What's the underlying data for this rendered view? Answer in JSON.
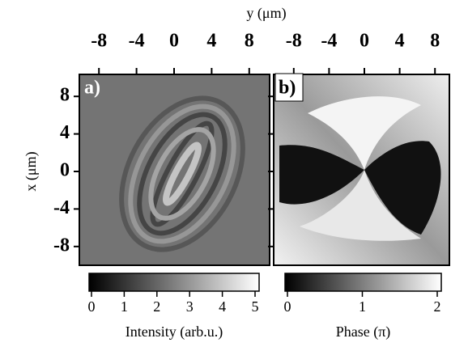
{
  "xlabel": "y (μm)",
  "ylabel": "x (μm)",
  "chart_data": [
    {
      "type": "heatmap",
      "panel_label": "a)",
      "xlim": [
        -10,
        10
      ],
      "xticks": [
        -8,
        -4,
        0,
        4,
        8
      ],
      "ylim": [
        -10,
        10
      ],
      "yticks": [
        -8,
        -4,
        0,
        4,
        8
      ],
      "colormap": [
        "#000000",
        "#ffffff"
      ],
      "colorbar": {
        "label": "Intensity (arb.u.)",
        "lim": [
          0,
          5
        ],
        "ticks": [
          0,
          1,
          2,
          3,
          4,
          5
        ]
      }
    },
    {
      "type": "heatmap",
      "panel_label": "b)",
      "xlim": [
        -10,
        10
      ],
      "xticks": [
        -8,
        -4,
        0,
        4,
        8
      ],
      "ylim": [
        -10,
        10
      ],
      "yticks": [
        -8,
        -4,
        0,
        4,
        8
      ],
      "colormap": [
        "#000000",
        "#ffffff"
      ],
      "colorbar": {
        "label": "Phase (π)",
        "lim": [
          0,
          2
        ],
        "ticks": [
          0,
          1,
          2
        ]
      }
    }
  ]
}
